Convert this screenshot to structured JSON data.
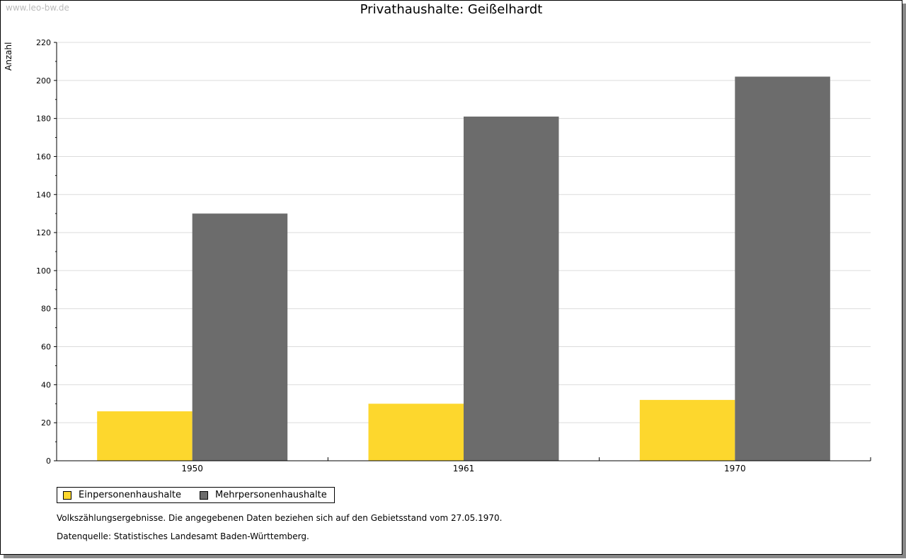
{
  "watermark": "www.leo-bw.de",
  "chart_data": {
    "type": "bar",
    "title": "Privathaushalte: Geißelhardt",
    "xlabel": "",
    "ylabel": "Anzahl",
    "ylim": [
      0,
      220
    ],
    "yticks": [
      0,
      20,
      40,
      60,
      80,
      100,
      120,
      140,
      160,
      180,
      200,
      220
    ],
    "grid": true,
    "categories": [
      "1950",
      "1961",
      "1970"
    ],
    "series": [
      {
        "name": "Einpersonenhaushalte",
        "color": "#fdd72d",
        "values": [
          26,
          30,
          32
        ]
      },
      {
        "name": "Mehrpersonenhaushalte",
        "color": "#6c6c6c",
        "values": [
          130,
          181,
          202
        ]
      }
    ],
    "legend_position": "bottom-left"
  },
  "notes": [
    "Volkszählungsergebnisse. Die angegebenen Daten beziehen sich auf den Gebietsstand vom 27.05.1970.",
    "Datenquelle: Statistisches Landesamt Baden-Württemberg."
  ]
}
